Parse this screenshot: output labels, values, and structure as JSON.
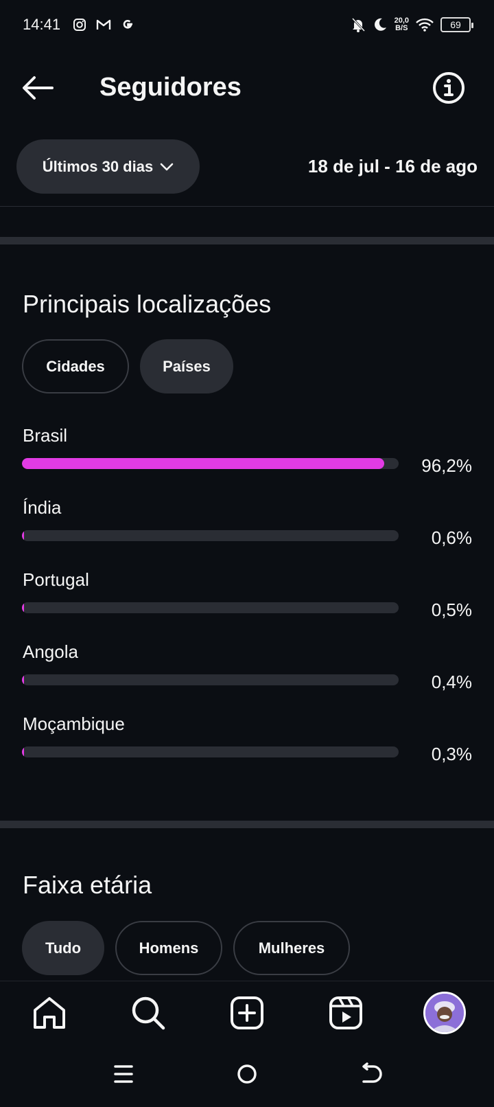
{
  "status_bar": {
    "time": "14:41",
    "net_speed_value": "20,0",
    "net_speed_unit": "B/S",
    "battery": "69"
  },
  "header": {
    "title": "Seguidores"
  },
  "range": {
    "dropdown_label": "Últimos 30 dias",
    "dates": "18 de jul - 16 de ago"
  },
  "locations": {
    "title": "Principais localizações",
    "tabs": [
      {
        "label": "Cidades",
        "selected": false
      },
      {
        "label": "Países",
        "selected": true
      }
    ],
    "items": [
      {
        "name": "Brasil",
        "pct": "96,2%",
        "fraction": 0.962
      },
      {
        "name": "Índia",
        "pct": "0,6%",
        "fraction": 0.006
      },
      {
        "name": "Portugal",
        "pct": "0,5%",
        "fraction": 0.005
      },
      {
        "name": "Angola",
        "pct": "0,4%",
        "fraction": 0.004
      },
      {
        "name": "Moçambique",
        "pct": "0,3%",
        "fraction": 0.003
      }
    ],
    "bar_color": "#e23be4"
  },
  "age": {
    "title": "Faixa etária",
    "tabs": [
      {
        "label": "Tudo",
        "selected": true
      },
      {
        "label": "Homens",
        "selected": false
      },
      {
        "label": "Mulheres",
        "selected": false
      }
    ]
  },
  "bottom_nav": {
    "items": [
      "home-icon",
      "search-icon",
      "create-icon",
      "reels-icon",
      "profile-avatar"
    ]
  },
  "system_nav": {
    "items": [
      "menu-icon",
      "home-circle-icon",
      "back-icon"
    ]
  }
}
